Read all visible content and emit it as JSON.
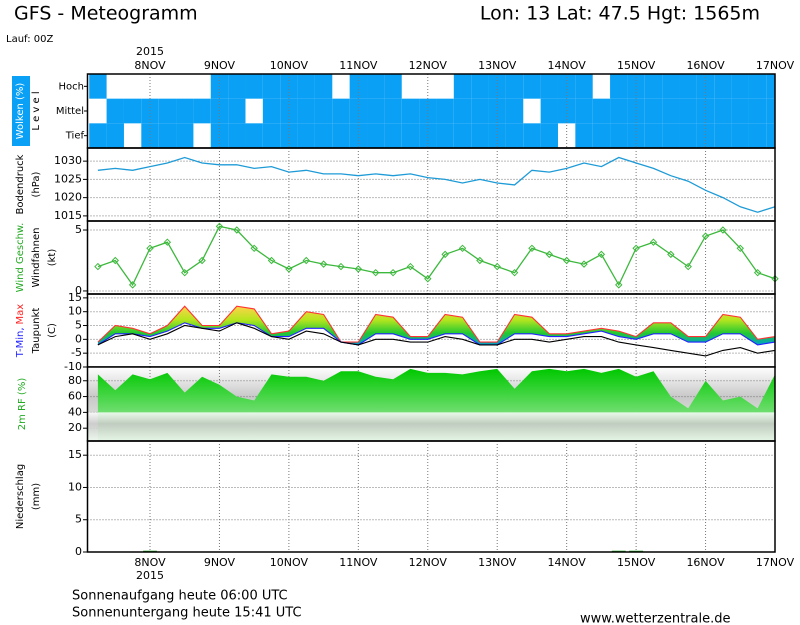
{
  "header": {
    "title": "GFS - Meteogramm",
    "location": "Lon: 13 Lat: 47.5 Hgt: 1565m",
    "run": "Lauf: 00Z"
  },
  "time_axis": {
    "year": "2015",
    "xlim": [
      7.1,
      17
    ],
    "xticks": [
      {
        "value": 8,
        "label": "8NOV"
      },
      {
        "value": 9,
        "label": "9NOV"
      },
      {
        "value": 10,
        "label": "10NOV"
      },
      {
        "value": 11,
        "label": "11NOV"
      },
      {
        "value": 12,
        "label": "12NOV"
      },
      {
        "value": 13,
        "label": "13NOV"
      },
      {
        "value": 14,
        "label": "14NOV"
      },
      {
        "value": 15,
        "label": "15NOV"
      },
      {
        "value": 16,
        "label": "16NOV"
      },
      {
        "value": 17,
        "label": "17NOV"
      }
    ]
  },
  "chart_data": [
    {
      "type": "heatmap",
      "color": "#0aa0f5",
      "ylabels": [
        [
          {
            "text": "Wolken (%)",
            "color": "#ffffff"
          }
        ],
        [
          {
            "text": "L e v e l",
            "color": "#000000"
          }
        ]
      ],
      "x": [
        7.25,
        7.5,
        7.75,
        8,
        8.25,
        8.5,
        8.75,
        9,
        9.25,
        9.5,
        9.75,
        10,
        10.25,
        10.5,
        10.75,
        11,
        11.25,
        11.5,
        11.75,
        12,
        12.25,
        12.5,
        12.75,
        13,
        13.25,
        13.5,
        13.75,
        14,
        14.25,
        14.5,
        14.75,
        15,
        15.25,
        15.5,
        15.75,
        16,
        16.25,
        16.5,
        16.75,
        17
      ],
      "series": [
        {
          "name": "Hoch",
          "values": [
            100,
            0,
            0,
            0,
            0,
            0,
            0,
            100,
            100,
            100,
            100,
            100,
            100,
            100,
            0,
            100,
            100,
            100,
            0,
            0,
            0,
            100,
            100,
            100,
            100,
            100,
            100,
            100,
            100,
            0,
            100,
            100,
            100,
            100,
            100,
            100,
            100,
            100,
            100,
            100
          ]
        },
        {
          "name": "Mittel",
          "values": [
            0,
            100,
            100,
            100,
            100,
            100,
            100,
            100,
            100,
            0,
            100,
            100,
            100,
            100,
            100,
            100,
            100,
            100,
            100,
            100,
            100,
            100,
            100,
            100,
            100,
            0,
            100,
            100,
            100,
            100,
            100,
            100,
            100,
            100,
            100,
            100,
            100,
            100,
            100,
            100
          ]
        },
        {
          "name": "Tief",
          "values": [
            100,
            100,
            0,
            100,
            100,
            100,
            0,
            100,
            100,
            100,
            100,
            100,
            100,
            100,
            100,
            100,
            100,
            100,
            100,
            100,
            100,
            100,
            100,
            100,
            100,
            100,
            100,
            0,
            100,
            100,
            100,
            100,
            100,
            100,
            100,
            100,
            100,
            100,
            100,
            100
          ]
        }
      ]
    },
    {
      "type": "line",
      "ylabels": [
        [
          {
            "text": "Bodendruck",
            "color": "#000000"
          }
        ],
        [
          {
            "text": "(hPa)",
            "color": "#000000"
          }
        ]
      ],
      "ylim": [
        1013.6,
        1033.6
      ],
      "yticks": [
        1015,
        1020,
        1025,
        1030
      ],
      "x": [
        7.25,
        7.5,
        7.75,
        8,
        8.25,
        8.5,
        8.75,
        9,
        9.25,
        9.5,
        9.75,
        10,
        10.25,
        10.5,
        10.75,
        11,
        11.25,
        11.5,
        11.75,
        12,
        12.25,
        12.5,
        12.75,
        13,
        13.25,
        13.5,
        13.75,
        14,
        14.25,
        14.5,
        14.75,
        15,
        15.25,
        15.5,
        15.75,
        16,
        16.25,
        16.5,
        16.75,
        17
      ],
      "series": [
        {
          "color": "#1e9bd7",
          "values": [
            1027.5,
            1028,
            1027.5,
            1028.5,
            1029.5,
            1031,
            1029.5,
            1029,
            1029,
            1028,
            1028.5,
            1027,
            1027.5,
            1026.5,
            1026.5,
            1026,
            1026.5,
            1026,
            1026.5,
            1025.5,
            1025,
            1024,
            1025,
            1024,
            1023.5,
            1027.5,
            1027,
            1028,
            1029.5,
            1028.5,
            1031,
            1029.5,
            1028,
            1026,
            1024.5,
            1022,
            1020,
            1017.5,
            1016,
            1017.5
          ]
        }
      ]
    },
    {
      "type": "line",
      "ylabels": [
        [
          {
            "text": "Wind Geschw.",
            "color": "#22aa22"
          }
        ],
        [
          {
            "text": "Windfahnen",
            "color": "#000000"
          }
        ],
        [
          {
            "text": "(kt)",
            "color": "#000000"
          }
        ]
      ],
      "ylim": [
        -0.25,
        5.74
      ],
      "yticks": [
        0,
        5
      ],
      "x": [
        7.25,
        7.5,
        7.75,
        8,
        8.25,
        8.5,
        8.75,
        9,
        9.25,
        9.5,
        9.75,
        10,
        10.25,
        10.5,
        10.75,
        11,
        11.25,
        11.5,
        11.75,
        12,
        12.25,
        12.5,
        12.75,
        13,
        13.25,
        13.5,
        13.75,
        14,
        14.25,
        14.5,
        14.75,
        15,
        15.25,
        15.5,
        15.75,
        16,
        16.25,
        16.5,
        16.75,
        17
      ],
      "series": [
        {
          "color": "#3cb83c",
          "markers": true,
          "values": [
            2,
            2.5,
            0.5,
            3.5,
            4,
            1.5,
            2.5,
            5.3,
            5,
            3.5,
            2.5,
            1.8,
            2.5,
            2.2,
            2,
            1.8,
            1.5,
            1.5,
            2,
            1,
            3,
            3.5,
            2.5,
            2,
            1.5,
            3.5,
            3,
            2.5,
            2.2,
            3,
            0.5,
            3.5,
            4,
            3,
            2,
            4.5,
            5,
            3.5,
            1.5,
            1
          ]
        }
      ]
    },
    {
      "type": "band",
      "ylabels": [
        [
          {
            "text": "T-Min,",
            "color": "#2222ff"
          },
          {
            "text": "Max",
            "color": "#ff2222"
          }
        ],
        [
          {
            "text": "Taupunkt",
            "color": "#000000"
          }
        ],
        [
          {
            "text": "(C)",
            "color": "#000000"
          }
        ]
      ],
      "ylim": [
        -10,
        16.4
      ],
      "yticks": [
        -10,
        -5,
        0,
        5,
        10,
        15
      ],
      "x": [
        7.25,
        7.5,
        7.75,
        8,
        8.25,
        8.5,
        8.75,
        9,
        9.25,
        9.5,
        9.75,
        10,
        10.25,
        10.5,
        10.75,
        11,
        11.25,
        11.5,
        11.75,
        12,
        12.25,
        12.5,
        12.75,
        13,
        13.25,
        13.5,
        13.75,
        14,
        14.25,
        14.5,
        14.75,
        15,
        15.25,
        15.5,
        15.75,
        16,
        16.25,
        16.5,
        16.75,
        17
      ],
      "series": [
        {
          "color": "#ff3333",
          "values": [
            -1,
            5,
            4,
            2,
            5,
            12,
            5,
            5,
            12,
            11,
            2,
            3,
            10,
            9,
            -1,
            -1,
            9,
            8,
            1,
            1,
            9,
            8,
            -1,
            -1,
            9,
            8,
            2,
            2,
            3,
            4,
            3,
            1,
            6,
            6,
            1,
            1,
            9,
            8,
            0,
            1
          ]
        },
        {
          "color": "#2222ff",
          "values": [
            -2,
            2,
            2,
            1,
            3,
            6,
            4,
            4,
            6,
            5,
            1,
            1,
            4,
            4,
            -1,
            -2,
            2,
            2,
            0,
            0,
            2,
            2,
            -2,
            -2,
            2,
            2,
            1,
            1,
            2,
            3,
            1,
            0,
            2,
            2,
            -1,
            -1,
            2,
            2,
            -2,
            -1
          ]
        },
        {
          "color": "#000000",
          "values": [
            -2,
            1,
            2,
            0,
            2,
            5,
            4,
            3,
            6,
            4,
            1,
            0,
            3,
            2,
            -1,
            -2,
            0,
            0,
            -1,
            -1,
            1,
            0,
            -2,
            -2,
            0,
            0,
            -1,
            0,
            1,
            1,
            -1,
            -2,
            -3,
            -4,
            -5,
            -6,
            -4,
            -3,
            -5,
            -4
          ]
        }
      ]
    },
    {
      "type": "area",
      "ylabels": [
        [
          {
            "text": "2m RF (%)",
            "color": "#22aa22"
          }
        ]
      ],
      "ylim": [
        3.8,
        97.4
      ],
      "yticks": [
        20,
        40,
        60,
        80
      ],
      "x": [
        7.25,
        7.5,
        7.75,
        8,
        8.25,
        8.5,
        8.75,
        9,
        9.25,
        9.5,
        9.75,
        10,
        10.25,
        10.5,
        10.75,
        11,
        11.25,
        11.5,
        11.75,
        12,
        12.25,
        12.5,
        12.75,
        13,
        13.25,
        13.5,
        13.75,
        14,
        14.25,
        14.5,
        14.75,
        15,
        15.25,
        15.5,
        15.75,
        16,
        16.25,
        16.5,
        16.75,
        17
      ],
      "series": [
        {
          "color": "#11cc11",
          "values": [
            88,
            68,
            88,
            82,
            90,
            65,
            85,
            75,
            60,
            55,
            88,
            85,
            85,
            80,
            92,
            92,
            85,
            82,
            95,
            90,
            90,
            88,
            92,
            95,
            70,
            92,
            95,
            92,
            95,
            90,
            95,
            85,
            92,
            60,
            45,
            80,
            55,
            60,
            45,
            88
          ]
        }
      ]
    },
    {
      "type": "bar",
      "ylabels": [
        [
          {
            "text": "Niederschlag",
            "color": "#000000"
          }
        ],
        [
          {
            "text": "(mm)",
            "color": "#000000"
          }
        ]
      ],
      "ylim": [
        0,
        17.2
      ],
      "yticks": [
        0,
        5,
        10,
        15
      ],
      "x": [
        7.25,
        7.5,
        7.75,
        8,
        8.25,
        8.5,
        8.75,
        9,
        9.25,
        9.5,
        9.75,
        10,
        10.25,
        10.5,
        10.75,
        11,
        11.25,
        11.5,
        11.75,
        12,
        12.25,
        12.5,
        12.75,
        13,
        13.25,
        13.5,
        13.75,
        14,
        14.25,
        14.5,
        14.75,
        15,
        15.25,
        15.5,
        15.75,
        16,
        16.25,
        16.5,
        16.75,
        17
      ],
      "series": [
        {
          "color": "#22aa22",
          "values": [
            0,
            0,
            0,
            0.2,
            0,
            0,
            0,
            0,
            0,
            0,
            0,
            0,
            0,
            0,
            0,
            0,
            0,
            0,
            0,
            0,
            0,
            0,
            0,
            0,
            0,
            0,
            0,
            0,
            0,
            0,
            0.2,
            0.2,
            0,
            0,
            0,
            0,
            0,
            0,
            0,
            0
          ]
        }
      ]
    }
  ],
  "footer": {
    "sunrise": "Sonnenaufgang heute 06:00 UTC",
    "sunset": "Sonnenuntergang heute 15:41 UTC",
    "site": "www.wetterzentrale.de"
  }
}
